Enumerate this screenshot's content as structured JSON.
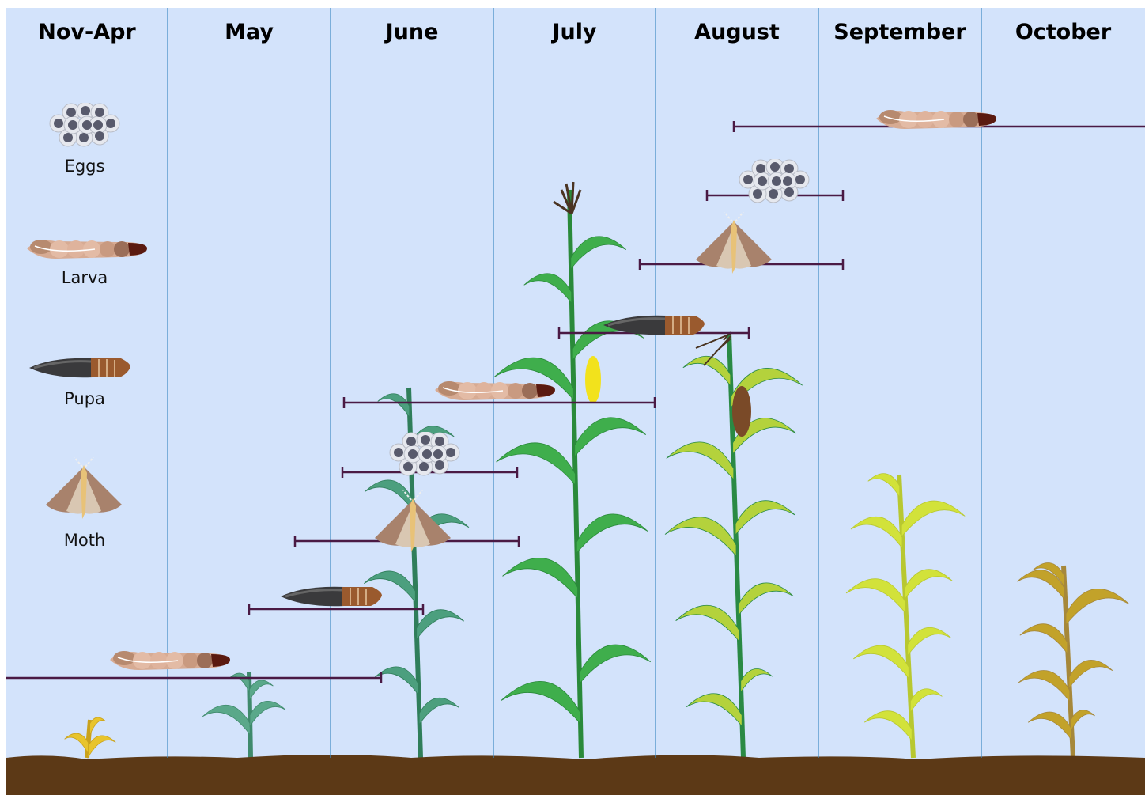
{
  "months": [
    "Nov-Apr",
    "May",
    "June",
    "July",
    "August",
    "September",
    "October"
  ],
  "legend": [
    "Eggs",
    "Larva",
    "Pupa",
    "Moth"
  ]
}
